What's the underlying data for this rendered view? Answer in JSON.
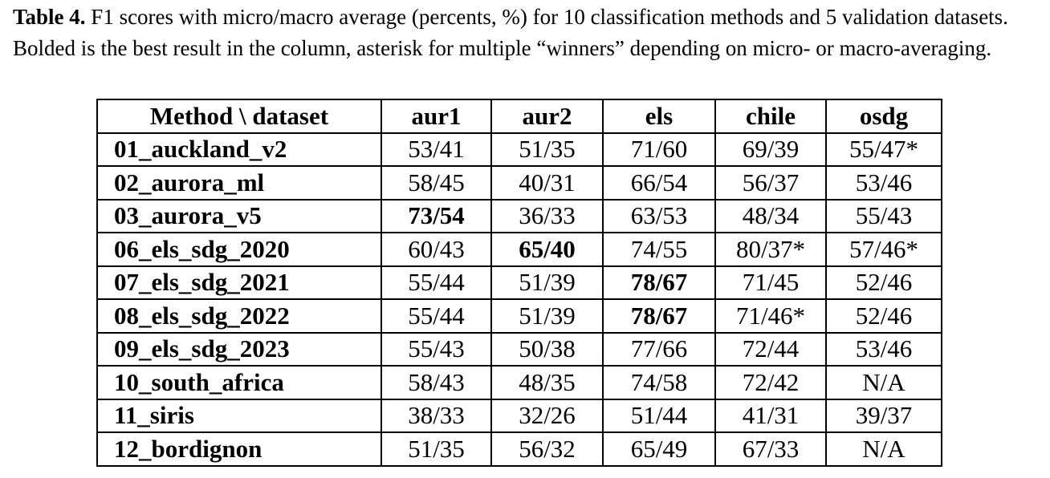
{
  "caption": {
    "label": "Table 4.",
    "text": "F1 scores with micro/macro average (percents, %) for 10 classification methods and 5 validation datasets. Bolded is the best result in the column, asterisk for multiple “winners” depending on micro- or macro-averaging."
  },
  "table": {
    "headers": [
      "Method \\  dataset",
      "aur1",
      "aur2",
      "els",
      "chile",
      "osdg"
    ],
    "rows": [
      {
        "method": "01_auckland_v2",
        "cells": [
          {
            "value": "53/41"
          },
          {
            "value": "51/35"
          },
          {
            "value": "71/60"
          },
          {
            "value": "69/39"
          },
          {
            "value": "55/47*"
          }
        ]
      },
      {
        "method": "02_aurora_ml",
        "cells": [
          {
            "value": "58/45"
          },
          {
            "value": "40/31"
          },
          {
            "value": "66/54"
          },
          {
            "value": "56/37"
          },
          {
            "value": "53/46"
          }
        ]
      },
      {
        "method": "03_aurora_v5",
        "cells": [
          {
            "value": "73/54",
            "bold": true
          },
          {
            "value": "36/33"
          },
          {
            "value": "63/53"
          },
          {
            "value": "48/34"
          },
          {
            "value": "55/43"
          }
        ]
      },
      {
        "method": "06_els_sdg_2020",
        "cells": [
          {
            "value": "60/43"
          },
          {
            "value": "65/40",
            "bold": true
          },
          {
            "value": "74/55"
          },
          {
            "value": "80/37*"
          },
          {
            "value": "57/46*"
          }
        ]
      },
      {
        "method": "07_els_sdg_2021",
        "cells": [
          {
            "value": "55/44"
          },
          {
            "value": "51/39"
          },
          {
            "value": "78/67",
            "bold": true
          },
          {
            "value": "71/45"
          },
          {
            "value": "52/46"
          }
        ]
      },
      {
        "method": "08_els_sdg_2022",
        "cells": [
          {
            "value": "55/44"
          },
          {
            "value": "51/39"
          },
          {
            "value": "78/67",
            "bold": true
          },
          {
            "value": "71/46*"
          },
          {
            "value": "52/46"
          }
        ]
      },
      {
        "method": "09_els_sdg_2023",
        "cells": [
          {
            "value": "55/43"
          },
          {
            "value": "50/38"
          },
          {
            "value": "77/66"
          },
          {
            "value": "72/44"
          },
          {
            "value": "53/46"
          }
        ]
      },
      {
        "method": "10_south_africa",
        "cells": [
          {
            "value": "58/43"
          },
          {
            "value": "48/35"
          },
          {
            "value": "74/58"
          },
          {
            "value": "72/42"
          },
          {
            "value": "N/A"
          }
        ]
      },
      {
        "method": "11_siris",
        "cells": [
          {
            "value": "38/33"
          },
          {
            "value": "32/26"
          },
          {
            "value": "51/44"
          },
          {
            "value": "41/31"
          },
          {
            "value": "39/37"
          }
        ]
      },
      {
        "method": "12_bordignon",
        "cells": [
          {
            "value": "51/35"
          },
          {
            "value": "56/32"
          },
          {
            "value": "65/49"
          },
          {
            "value": "67/33"
          },
          {
            "value": "N/A"
          }
        ]
      }
    ]
  }
}
